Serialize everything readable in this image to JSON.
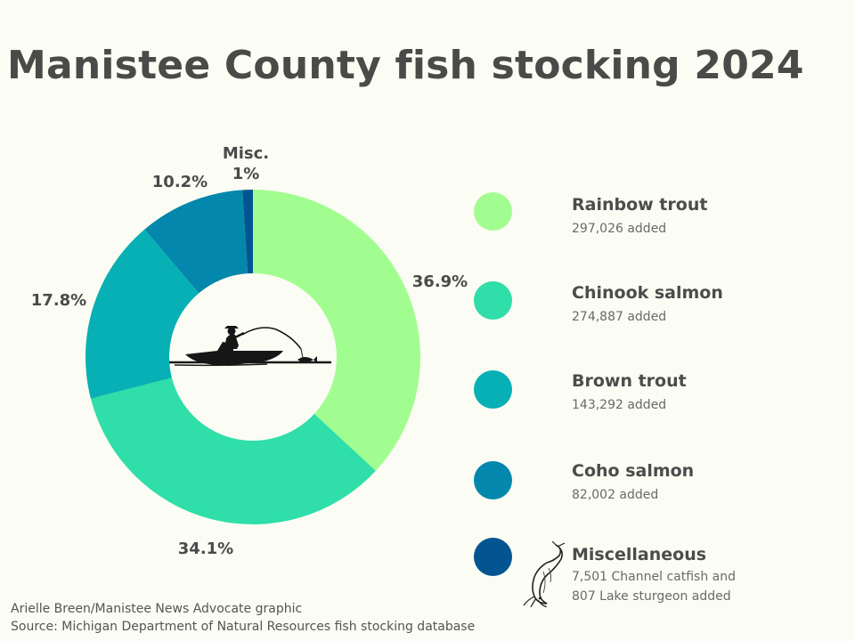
{
  "title": "Manistee County fish stocking 2024",
  "chart_data": {
    "type": "pie",
    "donut": true,
    "slices": [
      {
        "label": "Rainbow trout",
        "value": 36.9,
        "display": "36.9%",
        "color": "#a2fd90",
        "count": "297,026 added"
      },
      {
        "label": "Chinook salmon",
        "value": 34.1,
        "display": "34.1%",
        "color": "#2fdea8",
        "count": "274,887 added"
      },
      {
        "label": "Brown trout",
        "value": 17.8,
        "display": "17.8%",
        "color": "#07b0b5",
        "count": "143,292 added"
      },
      {
        "label": "Coho salmon",
        "value": 10.2,
        "display": "10.2%",
        "color": "#0487ac",
        "count": "82,002 added"
      },
      {
        "label": "Miscellaneous",
        "value": 1,
        "display": "1%",
        "display_prefix": "Misc.",
        "color": "#035592",
        "count": "7,501 Channel catfish and 807 Lake sturgeon added"
      }
    ],
    "legend_position": "right"
  },
  "legend": [
    {
      "name": "Rainbow trout",
      "detail": "297,026 added",
      "color": "#a2fd90"
    },
    {
      "name": "Chinook salmon",
      "detail": "274,887 added",
      "color": "#2fdea8"
    },
    {
      "name": "Brown trout",
      "detail": "143,292 added",
      "color": "#07b0b5"
    },
    {
      "name": "Coho salmon",
      "detail": "82,002 added",
      "color": "#0487ac"
    },
    {
      "name": "Miscellaneous",
      "detail": "7,501 Channel catfish and",
      "detail2": "807 Lake sturgeon added",
      "color": "#035592"
    }
  ],
  "credits": {
    "byline": "Arielle Breen/Manistee News Advocate graphic",
    "source": "Source: Michigan Department of Natural Resources fish stocking database"
  },
  "icons": {
    "center": "fisherman-boat-icon",
    "misc": "catfish-icon"
  }
}
